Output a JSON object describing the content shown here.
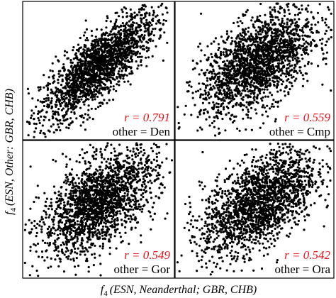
{
  "figure": {
    "xlabel_text": "(ESN, Neanderthal; GBR, CHB)",
    "ylabel_text": "(ESN, Other: GBR, CHB)",
    "f_symbol": "f",
    "f_subscript": "4"
  },
  "chart_data": [
    {
      "type": "scatter",
      "r_label": "r = 0.791",
      "other_label": "other = Den",
      "r": 0.791,
      "approx_points": 2000,
      "color": "#000000",
      "annotation_color": "#e8141b",
      "grid": false
    },
    {
      "type": "scatter",
      "r_label": "r = 0.559",
      "other_label": "other = Cmp",
      "r": 0.559,
      "approx_points": 2000,
      "color": "#000000",
      "annotation_color": "#e8141b",
      "grid": false
    },
    {
      "type": "scatter",
      "r_label": "r = 0.549",
      "other_label": "other = Gor",
      "r": 0.549,
      "approx_points": 2000,
      "color": "#000000",
      "annotation_color": "#e8141b",
      "grid": false
    },
    {
      "type": "scatter",
      "r_label": "r = 0.542",
      "other_label": "other = Ora",
      "r": 0.542,
      "approx_points": 2000,
      "color": "#000000",
      "annotation_color": "#e8141b",
      "grid": false
    }
  ]
}
